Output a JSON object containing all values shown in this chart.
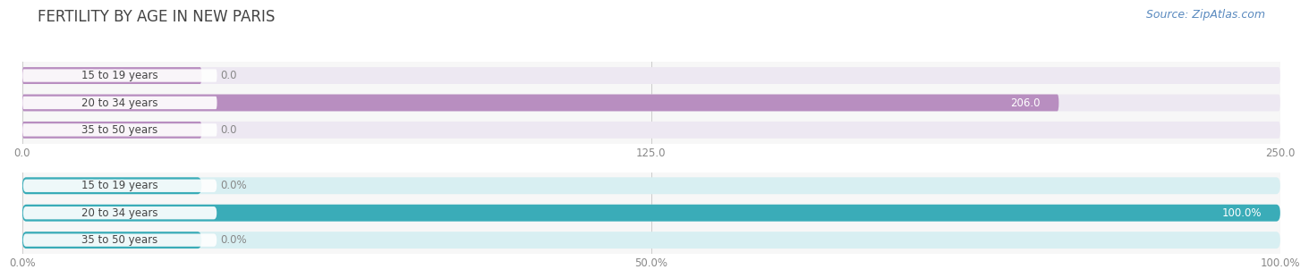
{
  "title": "FERTILITY BY AGE IN NEW PARIS",
  "source": "Source: ZipAtlas.com",
  "top_chart": {
    "categories": [
      "15 to 19 years",
      "20 to 34 years",
      "35 to 50 years"
    ],
    "values": [
      0.0,
      206.0,
      0.0
    ],
    "xlim": [
      0,
      250.0
    ],
    "xticks": [
      0.0,
      125.0,
      250.0
    ],
    "xticklabels": [
      "0.0",
      "125.0",
      "250.0"
    ],
    "bar_color": "#b88ec0",
    "bar_bg_color": "#ede8f2",
    "label_bg": "#ffffff"
  },
  "bottom_chart": {
    "categories": [
      "15 to 19 years",
      "20 to 34 years",
      "35 to 50 years"
    ],
    "values": [
      0.0,
      100.0,
      0.0
    ],
    "xlim": [
      0,
      100.0
    ],
    "xticks": [
      0.0,
      50.0,
      100.0
    ],
    "xticklabels": [
      "0.0%",
      "50.0%",
      "100.0%"
    ],
    "bar_color": "#3aacb8",
    "bar_bg_color": "#d8eff2",
    "label_bg": "#ffffff"
  },
  "fig_bg": "#ffffff",
  "chart_bg": "#f7f7f7",
  "title_fontsize": 12,
  "cat_fontsize": 8.5,
  "val_fontsize": 8.5,
  "tick_fontsize": 8.5,
  "source_fontsize": 9
}
